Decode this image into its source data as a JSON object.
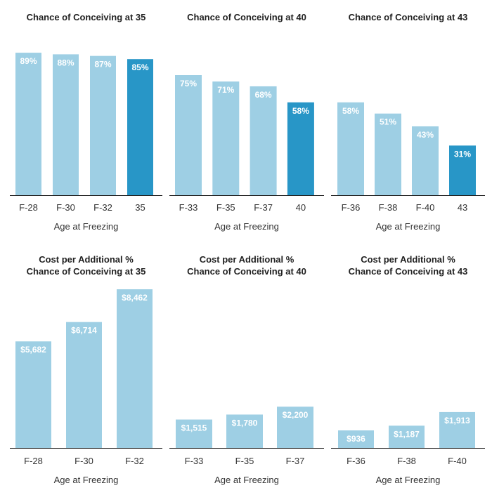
{
  "colors": {
    "bar": "#9ecfe4",
    "highlight": "#2896c7",
    "axis": "#222222",
    "label": "#ffffff"
  },
  "chart_data": [
    {
      "type": "bar",
      "title": [
        "Chance of Conceiving at 35"
      ],
      "xlabel": "Age at Freezing",
      "ylabel": "",
      "ylim": [
        0,
        100
      ],
      "categories": [
        "F-28",
        "F-30",
        "F-32",
        "35"
      ],
      "values": [
        89,
        88,
        87,
        85
      ],
      "labels": [
        "89%",
        "88%",
        "87%",
        "85%"
      ],
      "highlight_index": 3
    },
    {
      "type": "bar",
      "title": [
        "Chance of Conceiving at 40"
      ],
      "xlabel": "Age at Freezing",
      "ylabel": "",
      "ylim": [
        0,
        100
      ],
      "categories": [
        "F-33",
        "F-35",
        "F-37",
        "40"
      ],
      "values": [
        75,
        71,
        68,
        58
      ],
      "labels": [
        "75%",
        "71%",
        "68%",
        "58%"
      ],
      "highlight_index": 3
    },
    {
      "type": "bar",
      "title": [
        "Chance of Conceiving at 43"
      ],
      "xlabel": "Age at Freezing",
      "ylabel": "",
      "ylim": [
        0,
        100
      ],
      "categories": [
        "F-36",
        "F-38",
        "F-40",
        "43"
      ],
      "values": [
        58,
        51,
        43,
        31
      ],
      "labels": [
        "58%",
        "51%",
        "43%",
        "31%"
      ],
      "highlight_index": 3
    },
    {
      "type": "bar",
      "title": [
        "Cost per Additional %",
        "Chance of Conceiving at 35"
      ],
      "xlabel": "Age at Freezing",
      "ylabel": "",
      "ylim": [
        0,
        8462
      ],
      "categories": [
        "F-28",
        "F-30",
        "F-32"
      ],
      "values": [
        5682,
        6714,
        8462
      ],
      "labels": [
        "$5,682",
        "$6,714",
        "$8,462"
      ],
      "highlight_index": -1
    },
    {
      "type": "bar",
      "title": [
        "Cost per Additional %",
        "Chance of Conceiving at 40"
      ],
      "xlabel": "Age at Freezing",
      "ylabel": "",
      "ylim": [
        0,
        8462
      ],
      "categories": [
        "F-33",
        "F-35",
        "F-37"
      ],
      "values": [
        1515,
        1780,
        2200
      ],
      "labels": [
        "$1,515",
        "$1,780",
        "$2,200"
      ],
      "highlight_index": -1
    },
    {
      "type": "bar",
      "title": [
        "Cost per Additional %",
        "Chance of Conceiving at 43"
      ],
      "xlabel": "Age at Freezing",
      "ylabel": "",
      "ylim": [
        0,
        8462
      ],
      "categories": [
        "F-36",
        "F-38",
        "F-40"
      ],
      "values": [
        936,
        1187,
        1913
      ],
      "labels": [
        "$936",
        "$1,187",
        "$1,913"
      ],
      "highlight_index": -1
    }
  ]
}
